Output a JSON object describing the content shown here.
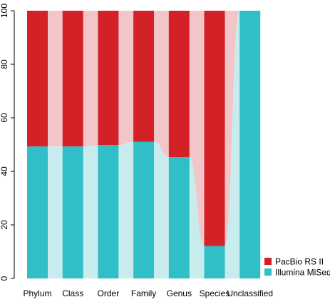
{
  "chart_data": {
    "type": "bar",
    "stacked": true,
    "percent": true,
    "categories": [
      "Phylum",
      "Class",
      "Order",
      "Family",
      "Genus",
      "Species",
      "Unclassified"
    ],
    "series": [
      {
        "name": "Illumina MiSeq",
        "values": [
          49.3,
          49.3,
          49.8,
          51.0,
          45.3,
          12.1,
          100
        ]
      },
      {
        "name": "PacBio RS II",
        "values": [
          50.7,
          50.7,
          50.2,
          49.0,
          54.7,
          87.9,
          0
        ]
      }
    ],
    "colors": {
      "Illumina MiSeq": "#30BFC6",
      "Illumina MiSeq flow": "#C8ECEE",
      "PacBio RS II": "#D42128",
      "PacBio RS II flow": "#F2C6C8"
    },
    "ylim": [
      0,
      100
    ],
    "yticks": [
      "0",
      "20",
      "40",
      "60",
      "80",
      "100"
    ],
    "xlabel": "",
    "ylabel": "",
    "title": "",
    "legend": {
      "position": "bottom-right",
      "entries": [
        "PacBio RS II",
        "Illumina MiSeq"
      ]
    },
    "grid": false
  }
}
